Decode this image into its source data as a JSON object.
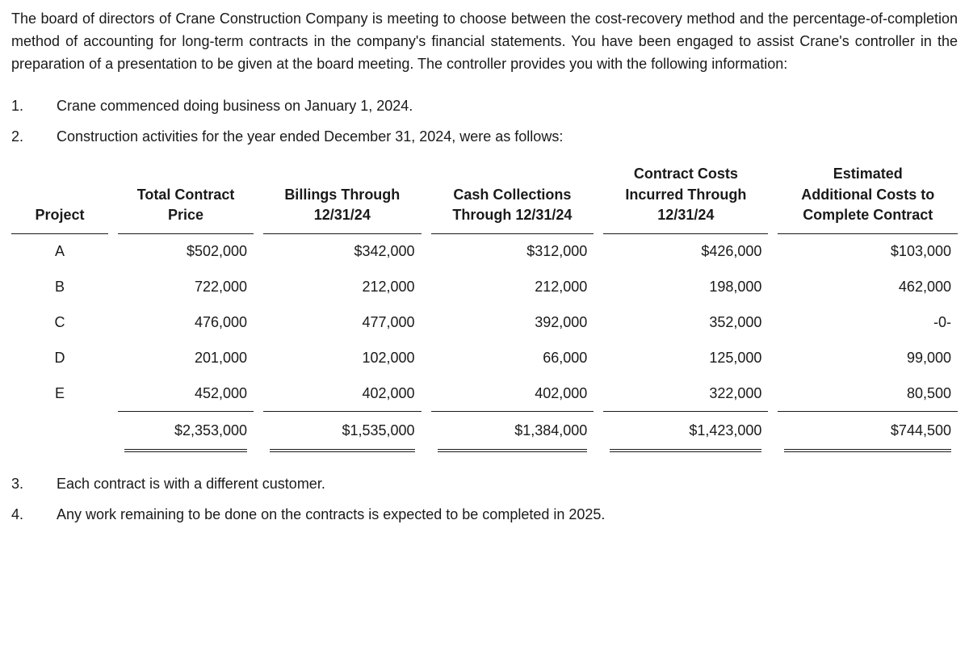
{
  "intro": "The board of directors of Crane Construction Company is meeting to choose between the cost-recovery method and the percentage-of-completion method of accounting for long-term contracts in the company's financial statements. You have been engaged to assist Crane's controller in the preparation of a presentation to be given at the board meeting. The controller provides you with the following information:",
  "items": {
    "n1": "1.",
    "t1": "Crane commenced doing business on January 1, 2024.",
    "n2": "2.",
    "t2": "Construction activities for the year ended December 31, 2024, were as follows:",
    "n3": "3.",
    "t3": "Each contract is with a different customer.",
    "n4": "4.",
    "t4": "Any work remaining to be done on the contracts is expected to be completed in 2025."
  },
  "table": {
    "headers": {
      "project": "Project",
      "price_l1": "Total Contract",
      "price_l2": "Price",
      "billings_l1": "Billings Through",
      "billings_l2": "12/31/24",
      "cash_l1": "Cash Collections",
      "cash_l2": "Through 12/31/24",
      "costs_l1": "Contract Costs",
      "costs_l2": "Incurred Through",
      "costs_l3": "12/31/24",
      "addl_l1": "Estimated",
      "addl_l2": "Additional Costs to",
      "addl_l3": "Complete Contract"
    },
    "rows": [
      {
        "project": "A",
        "price": "$502,000",
        "billings": "$342,000",
        "cash": "$312,000",
        "costs": "$426,000",
        "addl": "$103,000"
      },
      {
        "project": "B",
        "price": "722,000",
        "billings": "212,000",
        "cash": "212,000",
        "costs": "198,000",
        "addl": "462,000"
      },
      {
        "project": "C",
        "price": "476,000",
        "billings": "477,000",
        "cash": "392,000",
        "costs": "352,000",
        "addl": "-0-"
      },
      {
        "project": "D",
        "price": "201,000",
        "billings": "102,000",
        "cash": "66,000",
        "costs": "125,000",
        "addl": "99,000"
      },
      {
        "project": "E",
        "price": "452,000",
        "billings": "402,000",
        "cash": "402,000",
        "costs": "322,000",
        "addl": "80,500"
      }
    ],
    "totals": {
      "price": "$2,353,000",
      "billings": "$1,535,000",
      "cash": "$1,384,000",
      "costs": "$1,423,000",
      "addl": "$744,500"
    }
  }
}
